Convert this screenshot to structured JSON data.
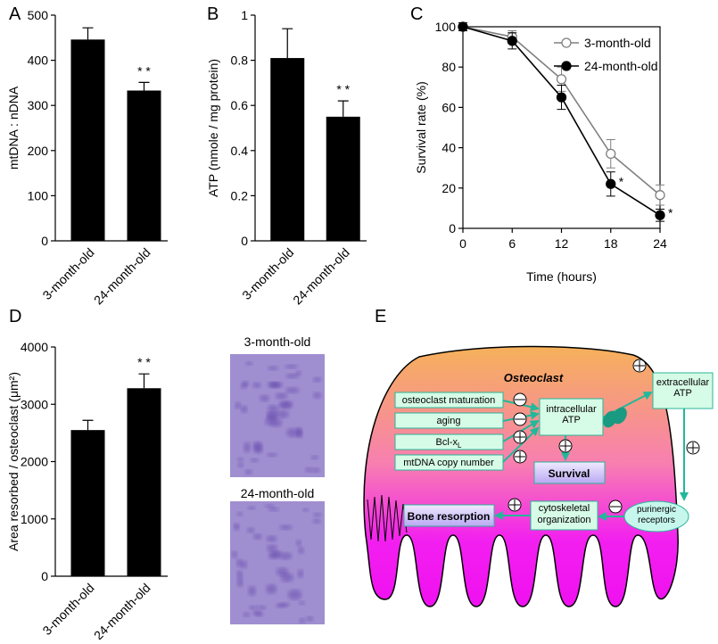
{
  "chart_data": [
    {
      "panel": "A",
      "type": "bar",
      "ylabel": "mtDNA : nDNA",
      "categories": [
        "3-month-old",
        "24-month-old"
      ],
      "values": [
        446,
        333
      ],
      "errors": [
        26,
        18
      ],
      "color": "#000000",
      "ylim": [
        0,
        500
      ],
      "yticks": [
        0,
        100,
        200,
        300,
        400,
        500
      ],
      "annotations": [
        "* *"
      ]
    },
    {
      "panel": "B",
      "type": "bar",
      "ylabel": "ATP (nmole / mg protein)",
      "categories": [
        "3-month-old",
        "24-month-old"
      ],
      "values": [
        0.81,
        0.55
      ],
      "errors": [
        0.13,
        0.07
      ],
      "color": "#000000",
      "ylim": [
        0,
        1
      ],
      "yticks": [
        0,
        0.2,
        0.4,
        0.6,
        0.8,
        1
      ],
      "annotations": [
        "* *"
      ]
    },
    {
      "panel": "C",
      "type": "line",
      "xlabel": "Time (hours)",
      "ylabel": "Survival rate (%)",
      "x": [
        0,
        6,
        12,
        18,
        24
      ],
      "series": [
        {
          "name": "3-month-old",
          "color": "#808080",
          "marker_fill": "#ffffff",
          "values": [
            100,
            95,
            74,
            37,
            16.5
          ],
          "errors": [
            2,
            3,
            6,
            7,
            5
          ]
        },
        {
          "name": "24-month-old",
          "color": "#000000",
          "marker_fill": "#000000",
          "values": [
            100,
            93,
            65,
            22,
            6.5
          ],
          "errors": [
            2,
            4,
            6,
            6,
            3
          ]
        }
      ],
      "xlim": [
        0,
        24
      ],
      "xticks": [
        0,
        6,
        12,
        18,
        24
      ],
      "ylim": [
        0,
        100
      ],
      "yticks": [
        0,
        20,
        40,
        60,
        80,
        100
      ],
      "annotations": [
        "*",
        "*"
      ],
      "legend": "upper right"
    },
    {
      "panel": "D",
      "type": "bar",
      "ylabel": "Area resorbed / osteoclast (μm²)",
      "categories": [
        "3-month-old",
        "24-month-old"
      ],
      "values": [
        2550,
        3280
      ],
      "errors": [
        170,
        250
      ],
      "color": "#000000",
      "ylim": [
        0,
        4000
      ],
      "yticks": [
        0,
        1000,
        2000,
        3000,
        4000
      ],
      "annotations": [
        "* *"
      ]
    }
  ],
  "micrographs": [
    {
      "label": "3-month-old"
    },
    {
      "label": "24-month-old"
    }
  ],
  "diagram": {
    "panel": "E",
    "title": "Osteoclast",
    "inputs": [
      {
        "label": "osteoclast maturation"
      },
      {
        "label": "aging"
      },
      {
        "label": "Bcl-x",
        "subscript": "L"
      },
      {
        "label": "mtDNA copy number"
      }
    ],
    "intracellular": "intracellular ATP",
    "survival": "Survival",
    "extracellular": "extracellular ATP",
    "receptors": "purinergic receptors",
    "cytoskeleton": "cytoskeletal organization",
    "resorption": "Bone resorption"
  }
}
